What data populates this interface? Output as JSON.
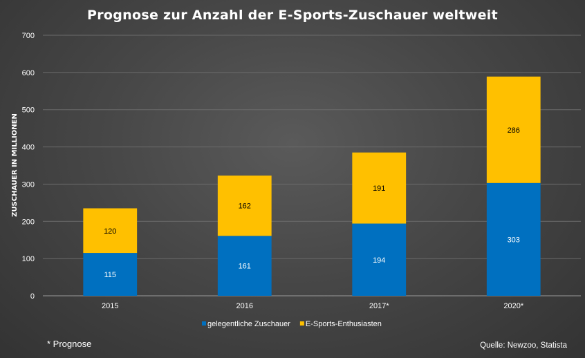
{
  "chart_data": {
    "type": "bar",
    "stacked": true,
    "title": "Prognose zur Anzahl der E-Sports-Zuschauer weltweit",
    "ylabel": "ZUSCHAUER IN MILLIONEN",
    "xlabel": "",
    "categories": [
      "2015",
      "2016",
      "2017*",
      "2020*"
    ],
    "series": [
      {
        "name": "gelegentliche Zuschauer",
        "values": [
          115,
          161,
          194,
          303
        ],
        "color": "#0070C0",
        "label_color": "#ffffff"
      },
      {
        "name": "E-Sports-Enthusiasten",
        "values": [
          120,
          162,
          191,
          286
        ],
        "color": "#FFC000",
        "label_color": "#000000"
      }
    ],
    "ylim": [
      0,
      700
    ],
    "yticks": [
      0,
      100,
      200,
      300,
      400,
      500,
      600,
      700
    ],
    "grid": true,
    "legend_position": "bottom"
  },
  "footnote": "* Prognose",
  "source": "Quelle: Newzoo, Statista",
  "colors": {
    "gridline": "#6b6b6b",
    "axis": "#9a9a9a"
  }
}
